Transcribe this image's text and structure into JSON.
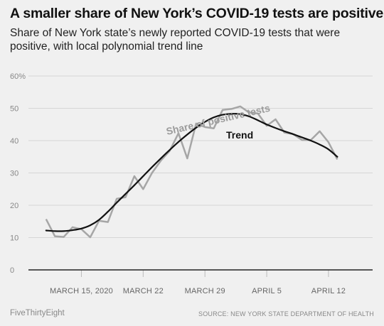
{
  "header": {
    "title": "A smaller share of New York’s COVID-19 tests are positive",
    "subtitle": "Share of New York state’s newly reported COVID-19 tests that were positive, with local polynomial trend line"
  },
  "footer": {
    "brand": "FiveThirtyEight",
    "source": "SOURCE: NEW YORK STATE DEPARTMENT OF HEALTH"
  },
  "colors": {
    "background": "#f0f0f0",
    "share_line": "#a6a6a6",
    "trend_line": "#111111",
    "grid": "#d6d6d6",
    "baseline": "#222222"
  },
  "chart_data": {
    "type": "line",
    "title": "A smaller share of New York’s COVID-19 tests are positive",
    "ylim": [
      0,
      60
    ],
    "yticks": [
      0,
      10,
      20,
      30,
      40,
      50,
      60
    ],
    "ytick_labels": [
      "0",
      "10",
      "20",
      "30",
      "40",
      "50",
      "60%"
    ],
    "xlim": [
      "2020-03-09",
      "2020-04-17"
    ],
    "xticks": [
      {
        "date": "2020-03-15",
        "label": "MARCH 15, 2020"
      },
      {
        "date": "2020-03-22",
        "label": "MARCH 22"
      },
      {
        "date": "2020-03-29",
        "label": "MARCH 29"
      },
      {
        "date": "2020-04-05",
        "label": "APRIL 5"
      },
      {
        "date": "2020-04-12",
        "label": "APRIL 12"
      }
    ],
    "grid": true,
    "annotations": [
      {
        "series": "share",
        "text": "Share of positive tests"
      },
      {
        "series": "trend",
        "text": "Trend"
      }
    ],
    "series": [
      {
        "key": "share",
        "x": [
          "2020-03-11",
          "2020-03-12",
          "2020-03-13",
          "2020-03-14",
          "2020-03-15",
          "2020-03-16",
          "2020-03-17",
          "2020-03-18",
          "2020-03-19",
          "2020-03-20",
          "2020-03-21",
          "2020-03-22",
          "2020-03-23",
          "2020-03-24",
          "2020-03-25",
          "2020-03-26",
          "2020-03-27",
          "2020-03-28",
          "2020-03-29",
          "2020-03-30",
          "2020-03-31",
          "2020-04-01",
          "2020-04-02",
          "2020-04-03",
          "2020-04-04",
          "2020-04-05",
          "2020-04-06",
          "2020-04-07",
          "2020-04-08",
          "2020-04-09",
          "2020-04-10",
          "2020-04-11",
          "2020-04-12",
          "2020-04-13"
        ],
        "values": [
          15.7,
          10.4,
          10.2,
          13.2,
          12.6,
          10.1,
          15.2,
          14.8,
          22.0,
          22.5,
          29.0,
          25.0,
          30.0,
          33.8,
          36.8,
          42.3,
          34.5,
          45.3,
          44.2,
          43.8,
          49.5,
          49.8,
          50.6,
          48.7,
          48.4,
          44.6,
          46.6,
          42.5,
          42.0,
          40.2,
          40.2,
          42.9,
          39.5,
          34.2
        ]
      },
      {
        "key": "trend",
        "x": [
          "2020-03-11",
          "2020-03-12",
          "2020-03-13",
          "2020-03-14",
          "2020-03-15",
          "2020-03-16",
          "2020-03-17",
          "2020-03-18",
          "2020-03-19",
          "2020-03-20",
          "2020-03-21",
          "2020-03-22",
          "2020-03-23",
          "2020-03-24",
          "2020-03-25",
          "2020-03-26",
          "2020-03-27",
          "2020-03-28",
          "2020-03-29",
          "2020-03-30",
          "2020-03-31",
          "2020-04-01",
          "2020-04-02",
          "2020-04-03",
          "2020-04-04",
          "2020-04-05",
          "2020-04-06",
          "2020-04-07",
          "2020-04-08",
          "2020-04-09",
          "2020-04-10",
          "2020-04-11",
          "2020-04-12",
          "2020-04-13"
        ],
        "values": [
          12.2,
          12.0,
          12.0,
          12.3,
          12.8,
          13.8,
          15.5,
          18.0,
          20.8,
          23.5,
          26.2,
          29.0,
          31.8,
          34.5,
          37.1,
          39.6,
          41.9,
          44.0,
          45.8,
          47.2,
          48.0,
          48.3,
          48.2,
          47.5,
          46.3,
          45.0,
          43.9,
          42.9,
          42.0,
          41.0,
          40.0,
          38.8,
          37.3,
          35.0
        ]
      }
    ]
  }
}
